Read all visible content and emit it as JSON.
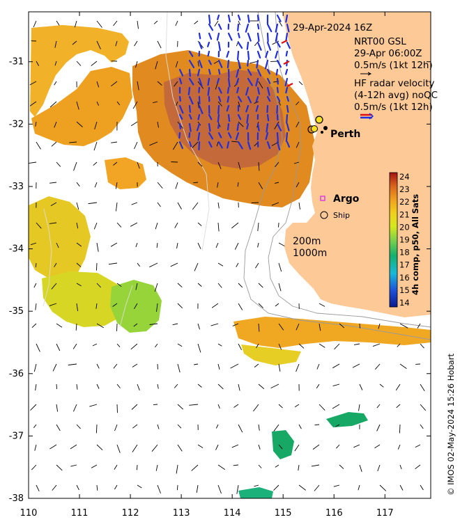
{
  "map": {
    "lon_range": [
      110,
      117.9
    ],
    "lat_range": [
      -38,
      -30.2
    ],
    "x_ticks": [
      "110",
      "111",
      "112",
      "113",
      "114",
      "115",
      "116",
      "117"
    ],
    "y_ticks": [
      "-31",
      "-32",
      "-33",
      "-34",
      "-35",
      "-36",
      "-37",
      "-38"
    ],
    "x_tick_values": [
      110,
      111,
      112,
      113,
      114,
      115,
      116,
      117
    ],
    "y_tick_values": [
      -31,
      -32,
      -33,
      -34,
      -35,
      -36,
      -37,
      -38
    ]
  },
  "info": {
    "datetime": "29-Apr-2024 16Z",
    "model": "NRT00 GSL",
    "model_time": "29-Apr 06:00Z",
    "model_scale": "0.5m/s (1kt 12h)",
    "hf_title": "HF radar velocity",
    "hf_subtitle": "(4-12h avg) noQC",
    "hf_scale": "0.5m/s (1kt 12h)"
  },
  "places": {
    "city": "Perth",
    "argo": "Argo",
    "ship": "Ship",
    "contour_200": "200m",
    "contour_1000": "1000m"
  },
  "colorbar": {
    "label": "4h comp, p50, All Sats",
    "ticks": [
      "24",
      "23",
      "22",
      "21",
      "20",
      "19",
      "18",
      "17",
      "16",
      "15",
      "14"
    ],
    "min": 14,
    "max": 24
  },
  "colors": {
    "land": "#fcc997",
    "model_arrow": "#000000",
    "hf_arrow": "#1f2fe0",
    "argo_marker": "#e040e0"
  },
  "credit": "© IMOS 02-May-2024 15:26 Hobart"
}
